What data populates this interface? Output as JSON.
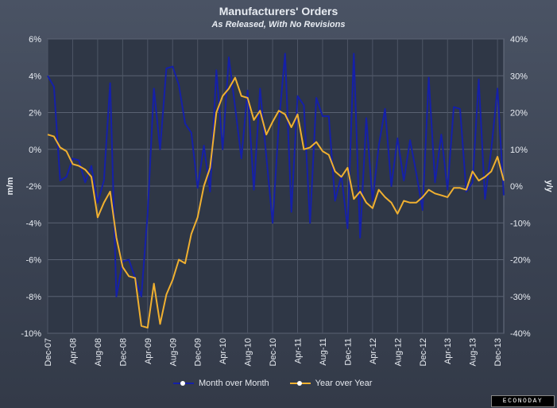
{
  "chart_data": {
    "type": "line",
    "title": "Manufacturers' Orders",
    "subtitle": "As Released, With No Revisions",
    "ylabel_left": "m/m",
    "ylabel_right": "y/y",
    "ylim_left": [
      -10,
      6
    ],
    "ylim_right": [
      -40,
      40
    ],
    "y_ticks_left": [
      "6%",
      "4%",
      "2%",
      "0%",
      "-2%",
      "-4%",
      "-6%",
      "-8%",
      "-10%"
    ],
    "y_ticks_right": [
      "40%",
      "30%",
      "20%",
      "10%",
      "0%",
      "-10%",
      "-20%",
      "-30%",
      "-40%"
    ],
    "x_ticks": [
      "Dec-07",
      "Apr-08",
      "Aug-08",
      "Dec-08",
      "Apr-09",
      "Aug-09",
      "Dec-09",
      "Apr-10",
      "Aug-10",
      "Dec-10",
      "Apr-11",
      "Aug-11",
      "Dec-11",
      "Apr-12",
      "Aug-12",
      "Dec-12",
      "Apr-13",
      "Aug-13",
      "Dec-13"
    ],
    "grid": true,
    "legend_position": "bottom-center",
    "series": [
      {
        "name": "Month over Month",
        "axis": "left",
        "color": "#1520a8",
        "values": [
          4.0,
          3.4,
          -1.7,
          -1.5,
          -0.5,
          -0.6,
          -1.8,
          -0.9,
          -2.9,
          -1.7,
          3.6,
          -8.0,
          -6.1,
          -6.0,
          -7.0,
          -8.0,
          -3.5,
          3.3,
          0.0,
          4.4,
          4.5,
          3.5,
          1.4,
          0.9,
          -2.1,
          0.2,
          -2.3,
          4.3,
          0.0,
          5.0,
          2.3,
          -0.5,
          3.2,
          -2.2,
          3.3,
          -0.4,
          -4.0,
          1.4,
          5.2,
          -3.4,
          2.9,
          2.4,
          -4.0,
          2.8,
          1.8,
          1.8,
          -2.8,
          -1.4,
          -4.3,
          5.2,
          -4.8,
          1.7,
          -2.8,
          0.2,
          2.2,
          -2.0,
          0.6,
          -1.7,
          0.5,
          -1.3,
          -3.3,
          3.9,
          -1.8,
          0.8,
          -2.2,
          2.3,
          2.2,
          -2.3,
          -1.8,
          3.8,
          -2.7,
          0.0,
          3.3,
          -2.5
        ]
      },
      {
        "name": "Year over Year",
        "axis": "right",
        "color": "#f0b030",
        "values": [
          14.0,
          13.5,
          10.5,
          9.5,
          6.0,
          5.5,
          4.5,
          2.5,
          -8.5,
          -4.5,
          -1.5,
          -14.0,
          -22.0,
          -24.5,
          -25.0,
          -38.0,
          -38.5,
          -26.5,
          -37.5,
          -29.5,
          -25.5,
          -20.0,
          -21.0,
          -13.0,
          -8.5,
          0.0,
          5.0,
          20.0,
          24.5,
          26.5,
          29.5,
          24.5,
          24.0,
          18.0,
          20.5,
          14.0,
          17.5,
          20.5,
          19.5,
          16.0,
          19.5,
          10.0,
          10.5,
          12.0,
          9.5,
          8.5,
          4.0,
          2.5,
          5.0,
          -3.5,
          -1.5,
          -4.5,
          -6.0,
          -1.0,
          -3.0,
          -4.5,
          -7.5,
          -4.0,
          -4.5,
          -4.5,
          -3.0,
          -1.0,
          -2.0,
          -2.5,
          -3.0,
          -0.5,
          -0.5,
          -1.0,
          4.0,
          1.5,
          2.5,
          4.0,
          8.0,
          1.5
        ]
      }
    ]
  },
  "legend": {
    "item1": "Month over Month",
    "item2": "Year over Year"
  },
  "brand": "ECONODAY"
}
